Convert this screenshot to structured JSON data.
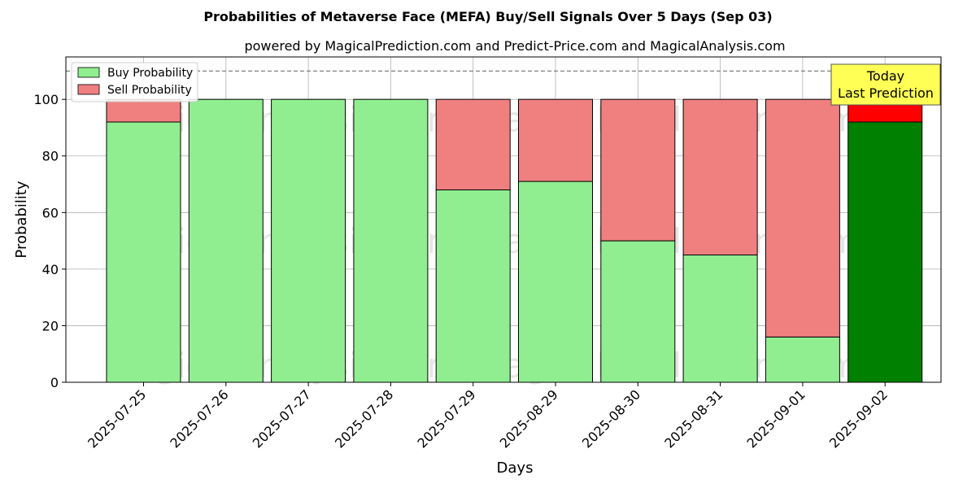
{
  "chart_data": {
    "type": "bar",
    "stacked": true,
    "title": "Probabilities of Metaverse Face (MEFA) Buy/Sell Signals Over 5 Days (Sep 03)",
    "subtitle": "powered by MagicalPrediction.com and Predict-Price.com and MagicalAnalysis.com",
    "xlabel": "Days",
    "ylabel": "Probability",
    "ylim": [
      0,
      115
    ],
    "yticks": [
      0,
      20,
      40,
      60,
      80,
      100
    ],
    "reference_line": 110,
    "grid": true,
    "legend_position": "top-left",
    "categories": [
      "2025-07-25",
      "2025-07-26",
      "2025-07-27",
      "2025-07-28",
      "2025-07-29",
      "2025-08-29",
      "2025-08-30",
      "2025-08-31",
      "2025-09-01",
      "2025-09-02"
    ],
    "series": [
      {
        "name": "Buy Probability",
        "color": "#90ee90",
        "highlight_color": "#008000",
        "values": [
          92,
          100,
          100,
          100,
          68,
          71,
          50,
          45,
          16,
          92
        ]
      },
      {
        "name": "Sell Probability",
        "color": "#f08080",
        "highlight_color": "#ff0000",
        "values": [
          8,
          0,
          0,
          0,
          32,
          29,
          50,
          55,
          84,
          8
        ]
      }
    ],
    "highlight_index": 9,
    "annotation": {
      "line1": "Today",
      "line2": "Last Prediction",
      "background": "#ffff55"
    },
    "watermarks": [
      "MagicalAnalysis.com",
      "MagicalPrediction.com"
    ]
  }
}
